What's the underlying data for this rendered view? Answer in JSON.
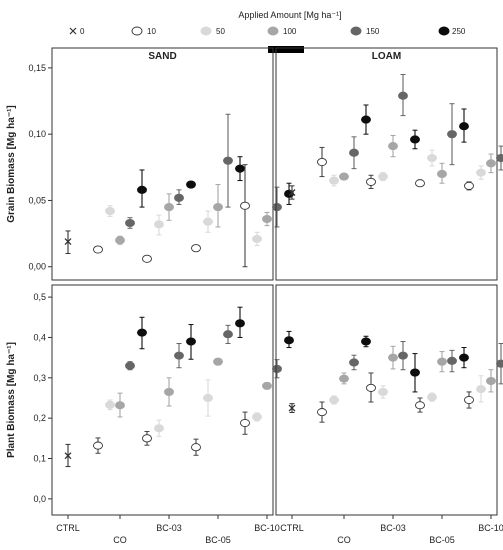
{
  "legend": {
    "title": "Applied Amount [Mg ha⁻¹]",
    "items": [
      {
        "label": "0",
        "marker": "cross",
        "color": "#333333"
      },
      {
        "label": "10",
        "marker": "circle",
        "color": "#ffffff"
      },
      {
        "label": "50",
        "marker": "circle",
        "color": "#d9d9d9"
      },
      {
        "label": "100",
        "marker": "circle",
        "color": "#a6a6a6"
      },
      {
        "label": "150",
        "marker": "circle",
        "color": "#666666"
      },
      {
        "label": "250",
        "marker": "circle",
        "color": "#0d0d0d"
      }
    ]
  },
  "panel_titles": [
    "SAND",
    "LOAM"
  ],
  "x_categories": [
    "CTRL",
    "CO",
    "BC-03",
    "BC-05",
    "BC-10"
  ],
  "chart_data": [
    {
      "type": "scatter",
      "panel": "SAND",
      "ylabel": "Grain Biomass [Mg ha⁻¹]",
      "ylim": [
        -0.01,
        0.165
      ],
      "yticks": [
        "0,00",
        "0,05",
        "0,10",
        "0,15"
      ],
      "ytick_values": [
        0,
        0.05,
        0.1,
        0.15
      ],
      "points": [
        {
          "category": "CTRL",
          "amount": "0",
          "y": 0.019,
          "low": 0.01,
          "high": 0.027
        },
        {
          "category": "CO",
          "amount": "10",
          "y": 0.013,
          "low": 0.012,
          "high": 0.014
        },
        {
          "category": "CO",
          "amount": "50",
          "y": 0.042,
          "low": 0.038,
          "high": 0.046
        },
        {
          "category": "CO",
          "amount": "100",
          "y": 0.02,
          "low": 0.017,
          "high": 0.023
        },
        {
          "category": "CO",
          "amount": "150",
          "y": 0.033,
          "low": 0.029,
          "high": 0.037
        },
        {
          "category": "CO",
          "amount": "250",
          "y": 0.058,
          "low": 0.045,
          "high": 0.073
        },
        {
          "category": "BC-03",
          "amount": "10",
          "y": 0.006,
          "low": 0.005,
          "high": 0.007
        },
        {
          "category": "BC-03",
          "amount": "50",
          "y": 0.032,
          "low": 0.024,
          "high": 0.039
        },
        {
          "category": "BC-03",
          "amount": "100",
          "y": 0.045,
          "low": 0.035,
          "high": 0.055
        },
        {
          "category": "BC-03",
          "amount": "150",
          "y": 0.052,
          "low": 0.047,
          "high": 0.058
        },
        {
          "category": "BC-03",
          "amount": "250",
          "y": 0.062,
          "low": 0.06,
          "high": 0.064
        },
        {
          "category": "BC-05",
          "amount": "10",
          "y": 0.014,
          "low": 0.013,
          "high": 0.015
        },
        {
          "category": "BC-05",
          "amount": "50",
          "y": 0.034,
          "low": 0.026,
          "high": 0.042
        },
        {
          "category": "BC-05",
          "amount": "100",
          "y": 0.045,
          "low": 0.03,
          "high": 0.062
        },
        {
          "category": "BC-05",
          "amount": "150",
          "y": 0.08,
          "low": 0.045,
          "high": 0.115
        },
        {
          "category": "BC-05",
          "amount": "250",
          "y": 0.074,
          "low": 0.065,
          "high": 0.083
        },
        {
          "category": "BC-10",
          "amount": "10",
          "y": 0.046,
          "low": 0.0,
          "high": 0.077
        },
        {
          "category": "BC-10",
          "amount": "50",
          "y": 0.021,
          "low": 0.016,
          "high": 0.026
        },
        {
          "category": "BC-10",
          "amount": "100",
          "y": 0.036,
          "low": 0.031,
          "high": 0.041
        },
        {
          "category": "BC-10",
          "amount": "150",
          "y": 0.045,
          "low": 0.03,
          "high": 0.06
        },
        {
          "category": "BC-10",
          "amount": "250",
          "y": 0.055,
          "low": 0.047,
          "high": 0.063
        }
      ]
    },
    {
      "type": "scatter",
      "panel": "LOAM",
      "ylabel": "Grain Biomass [Mg ha⁻¹]",
      "ylim": [
        -0.01,
        0.165
      ],
      "points": [
        {
          "category": "CTRL",
          "amount": "0",
          "y": 0.056,
          "low": 0.051,
          "high": 0.061
        },
        {
          "category": "CO",
          "amount": "10",
          "y": 0.079,
          "low": 0.068,
          "high": 0.09
        },
        {
          "category": "CO",
          "amount": "50",
          "y": 0.065,
          "low": 0.061,
          "high": 0.069
        },
        {
          "category": "CO",
          "amount": "100",
          "y": 0.068,
          "low": 0.067,
          "high": 0.069
        },
        {
          "category": "CO",
          "amount": "150",
          "y": 0.086,
          "low": 0.074,
          "high": 0.098
        },
        {
          "category": "CO",
          "amount": "250",
          "y": 0.111,
          "low": 0.1,
          "high": 0.122
        },
        {
          "category": "BC-03",
          "amount": "10",
          "y": 0.064,
          "low": 0.059,
          "high": 0.069
        },
        {
          "category": "BC-03",
          "amount": "50",
          "y": 0.068,
          "low": 0.065,
          "high": 0.071
        },
        {
          "category": "BC-03",
          "amount": "100",
          "y": 0.091,
          "low": 0.083,
          "high": 0.099
        },
        {
          "category": "BC-03",
          "amount": "150",
          "y": 0.129,
          "low": 0.114,
          "high": 0.145
        },
        {
          "category": "BC-03",
          "amount": "250",
          "y": 0.096,
          "low": 0.089,
          "high": 0.103
        },
        {
          "category": "BC-05",
          "amount": "10",
          "y": 0.063,
          "low": 0.061,
          "high": 0.065
        },
        {
          "category": "BC-05",
          "amount": "50",
          "y": 0.082,
          "low": 0.076,
          "high": 0.088
        },
        {
          "category": "BC-05",
          "amount": "100",
          "y": 0.07,
          "low": 0.063,
          "high": 0.078
        },
        {
          "category": "BC-05",
          "amount": "150",
          "y": 0.1,
          "low": 0.077,
          "high": 0.123
        },
        {
          "category": "BC-05",
          "amount": "250",
          "y": 0.106,
          "low": 0.094,
          "high": 0.119
        },
        {
          "category": "BC-10",
          "amount": "10",
          "y": 0.061,
          "low": 0.058,
          "high": 0.064
        },
        {
          "category": "BC-10",
          "amount": "50",
          "y": 0.071,
          "low": 0.066,
          "high": 0.076
        },
        {
          "category": "BC-10",
          "amount": "100",
          "y": 0.078,
          "low": 0.071,
          "high": 0.085
        },
        {
          "category": "BC-10",
          "amount": "150",
          "y": 0.082,
          "low": 0.073,
          "high": 0.091
        },
        {
          "category": "BC-10",
          "amount": "250",
          "y": 0.08,
          "low": 0.069,
          "high": 0.091
        }
      ]
    },
    {
      "type": "scatter",
      "panel": "SAND",
      "ylabel": "Plant Biomass [Mg ha⁻¹]",
      "ylim": [
        -0.04,
        0.53
      ],
      "yticks": [
        "0,0",
        "0,1",
        "0,2",
        "0,3",
        "0,4",
        "0,5"
      ],
      "ytick_values": [
        0,
        0.1,
        0.2,
        0.3,
        0.4,
        0.5
      ],
      "points": [
        {
          "category": "CTRL",
          "amount": "0",
          "y": 0.107,
          "low": 0.08,
          "high": 0.135
        },
        {
          "category": "CO",
          "amount": "10",
          "y": 0.132,
          "low": 0.113,
          "high": 0.151
        },
        {
          "category": "CO",
          "amount": "50",
          "y": 0.233,
          "low": 0.221,
          "high": 0.245
        },
        {
          "category": "CO",
          "amount": "100",
          "y": 0.232,
          "low": 0.203,
          "high": 0.262
        },
        {
          "category": "CO",
          "amount": "150",
          "y": 0.33,
          "low": 0.32,
          "high": 0.34
        },
        {
          "category": "CO",
          "amount": "250",
          "y": 0.412,
          "low": 0.372,
          "high": 0.45
        },
        {
          "category": "BC-03",
          "amount": "10",
          "y": 0.15,
          "low": 0.133,
          "high": 0.167
        },
        {
          "category": "BC-03",
          "amount": "50",
          "y": 0.175,
          "low": 0.155,
          "high": 0.195
        },
        {
          "category": "BC-03",
          "amount": "100",
          "y": 0.265,
          "low": 0.23,
          "high": 0.3
        },
        {
          "category": "BC-03",
          "amount": "150",
          "y": 0.355,
          "low": 0.325,
          "high": 0.385
        },
        {
          "category": "BC-03",
          "amount": "250",
          "y": 0.39,
          "low": 0.346,
          "high": 0.432
        },
        {
          "category": "BC-05",
          "amount": "10",
          "y": 0.128,
          "low": 0.108,
          "high": 0.148
        },
        {
          "category": "BC-05",
          "amount": "50",
          "y": 0.25,
          "low": 0.205,
          "high": 0.295
        },
        {
          "category": "BC-05",
          "amount": "100",
          "y": 0.34,
          "low": 0.335,
          "high": 0.345
        },
        {
          "category": "BC-05",
          "amount": "150",
          "y": 0.408,
          "low": 0.385,
          "high": 0.43
        },
        {
          "category": "BC-05",
          "amount": "250",
          "y": 0.435,
          "low": 0.4,
          "high": 0.475
        },
        {
          "category": "BC-10",
          "amount": "10",
          "y": 0.188,
          "low": 0.16,
          "high": 0.215
        },
        {
          "category": "BC-10",
          "amount": "50",
          "y": 0.203,
          "low": 0.193,
          "high": 0.213
        },
        {
          "category": "BC-10",
          "amount": "100",
          "y": 0.28,
          "low": 0.272,
          "high": 0.288
        },
        {
          "category": "BC-10",
          "amount": "150",
          "y": 0.322,
          "low": 0.3,
          "high": 0.345
        },
        {
          "category": "BC-10",
          "amount": "250",
          "y": 0.393,
          "low": 0.375,
          "high": 0.415
        }
      ]
    },
    {
      "type": "scatter",
      "panel": "LOAM",
      "ylabel": "Plant Biomass [Mg ha⁻¹]",
      "ylim": [
        -0.04,
        0.53
      ],
      "points": [
        {
          "category": "CTRL",
          "amount": "0",
          "y": 0.225,
          "low": 0.214,
          "high": 0.236
        },
        {
          "category": "CO",
          "amount": "10",
          "y": 0.215,
          "low": 0.19,
          "high": 0.24
        },
        {
          "category": "CO",
          "amount": "50",
          "y": 0.245,
          "low": 0.235,
          "high": 0.255
        },
        {
          "category": "CO",
          "amount": "100",
          "y": 0.298,
          "low": 0.285,
          "high": 0.312
        },
        {
          "category": "CO",
          "amount": "150",
          "y": 0.338,
          "low": 0.32,
          "high": 0.356
        },
        {
          "category": "CO",
          "amount": "250",
          "y": 0.39,
          "low": 0.377,
          "high": 0.403
        },
        {
          "category": "BC-03",
          "amount": "10",
          "y": 0.275,
          "low": 0.24,
          "high": 0.312
        },
        {
          "category": "BC-03",
          "amount": "50",
          "y": 0.265,
          "low": 0.25,
          "high": 0.28
        },
        {
          "category": "BC-03",
          "amount": "100",
          "y": 0.35,
          "low": 0.322,
          "high": 0.378
        },
        {
          "category": "BC-03",
          "amount": "150",
          "y": 0.355,
          "low": 0.32,
          "high": 0.39
        },
        {
          "category": "BC-03",
          "amount": "250",
          "y": 0.313,
          "low": 0.265,
          "high": 0.36
        },
        {
          "category": "BC-05",
          "amount": "10",
          "y": 0.232,
          "low": 0.215,
          "high": 0.25
        },
        {
          "category": "BC-05",
          "amount": "50",
          "y": 0.252,
          "low": 0.242,
          "high": 0.262
        },
        {
          "category": "BC-05",
          "amount": "100",
          "y": 0.34,
          "low": 0.315,
          "high": 0.365
        },
        {
          "category": "BC-05",
          "amount": "150",
          "y": 0.342,
          "low": 0.315,
          "high": 0.368
        },
        {
          "category": "BC-05",
          "amount": "250",
          "y": 0.35,
          "low": 0.325,
          "high": 0.375
        },
        {
          "category": "BC-10",
          "amount": "10",
          "y": 0.245,
          "low": 0.225,
          "high": 0.265
        },
        {
          "category": "BC-10",
          "amount": "50",
          "y": 0.272,
          "low": 0.24,
          "high": 0.305
        },
        {
          "category": "BC-10",
          "amount": "100",
          "y": 0.292,
          "low": 0.265,
          "high": 0.32
        },
        {
          "category": "BC-10",
          "amount": "150",
          "y": 0.335,
          "low": 0.285,
          "high": 0.385
        },
        {
          "category": "BC-10",
          "amount": "250",
          "y": 0.318,
          "low": 0.285,
          "high": 0.35
        }
      ]
    }
  ]
}
